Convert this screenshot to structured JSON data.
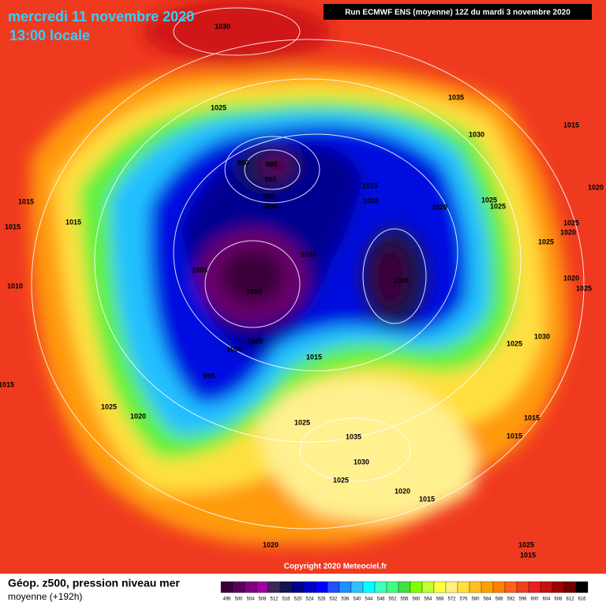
{
  "header": {
    "date": "mercredi 11 novembre 2020",
    "time": "13:00 locale",
    "run": "Run ECMWF ENS (moyenne) 12Z du mardi 3 novembre 2020"
  },
  "isobar_labels": [
    "1030",
    "1025",
    "1035",
    "1015",
    "1030",
    "990",
    "985",
    "985",
    "995",
    "1015",
    "1010",
    "1000",
    "1020",
    "1025",
    "1025",
    "1020",
    "1015",
    "1015",
    "1015",
    "1025",
    "1020",
    "1025",
    "1010",
    "1005",
    "1005",
    "1010",
    "1020",
    "1025",
    "1000",
    "1030",
    "1025",
    "1005",
    "1000",
    "1015",
    "995",
    "1015",
    "1025",
    "1020",
    "1015",
    "1025",
    "1035",
    "1015",
    "1030",
    "1025",
    "1020",
    "1015",
    "1020",
    "1025",
    "1015"
  ],
  "copyright": "Copyright 2020 Meteociel.fr",
  "legend": {
    "title": "Géop. z500, pression niveau mer",
    "subtitle": "moyenne  (+192h)",
    "colorbar": {
      "labels": [
        496,
        500,
        504,
        508,
        512,
        516,
        520,
        524,
        528,
        532,
        536,
        540,
        544,
        548,
        552,
        556,
        560,
        564,
        568,
        572,
        576,
        580,
        584,
        588,
        592,
        596,
        600,
        604,
        608,
        612,
        616
      ],
      "colors": [
        "#3a003a",
        "#5a005a",
        "#800080",
        "#a000a0",
        "#3a2a5a",
        "#141450",
        "#00008c",
        "#0000c8",
        "#0000ff",
        "#2050ff",
        "#2090ff",
        "#30c0ff",
        "#00ffff",
        "#40ffc0",
        "#40ff80",
        "#40e040",
        "#80ff00",
        "#c0ff30",
        "#ffff40",
        "#fff080",
        "#ffe040",
        "#ffc020",
        "#ffa000",
        "#ff8000",
        "#ff6020",
        "#f04020",
        "#e82020",
        "#c81010",
        "#a00000",
        "#700000",
        "#000000"
      ]
    }
  }
}
